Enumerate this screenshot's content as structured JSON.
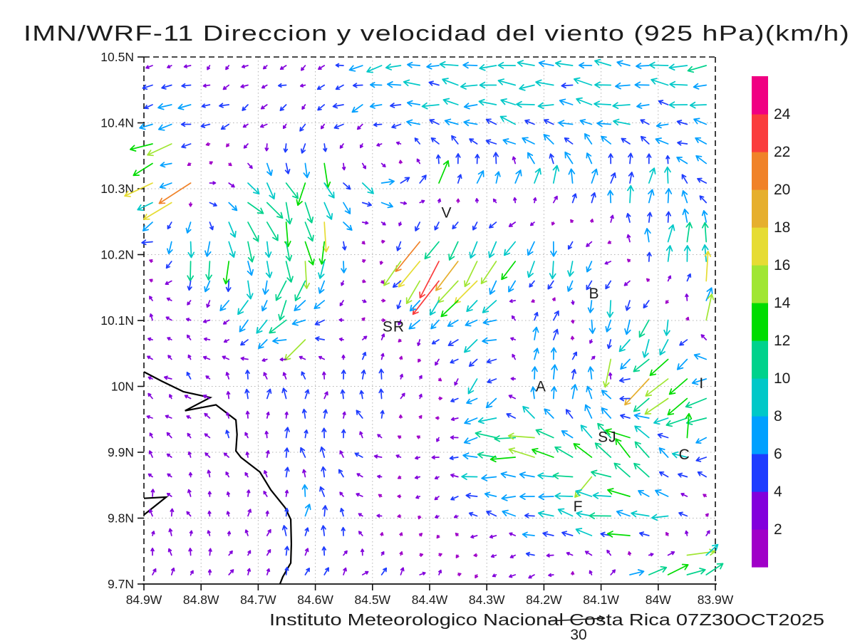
{
  "title": "IMN/WRF-11 Direccion y velocidad del viento (925 hPa)(km/h)",
  "caption": {
    "text": "Instituto Meteorologico Nacional Costa Rica 07Z30OCT2025",
    "reference_vector_label": "30",
    "reference_vector_value": 30
  },
  "axes": {
    "lon_tick_labels": [
      "84.9W",
      "84.8W",
      "84.7W",
      "84.6W",
      "84.5W",
      "84.4W",
      "84.3W",
      "84.2W",
      "84.1W",
      "84W",
      "83.9W"
    ],
    "lon_tick_values": [
      84.9,
      84.8,
      84.7,
      84.6,
      84.5,
      84.4,
      84.3,
      84.2,
      84.1,
      84.0,
      83.9
    ],
    "lat_tick_labels": [
      "10.5N",
      "10.4N",
      "10.3N",
      "10.2N",
      "10.1N",
      "10N",
      "9.9N",
      "9.8N",
      "9.7N"
    ],
    "lat_tick_values": [
      10.5,
      10.4,
      10.3,
      10.2,
      10.1,
      10.0,
      9.9,
      9.8,
      9.7
    ],
    "grid_on": true
  },
  "colorbar": {
    "levels": [
      2,
      4,
      6,
      8,
      10,
      12,
      14,
      16,
      18,
      20,
      22,
      24
    ],
    "colors": [
      "#A000C8",
      "#8200DC",
      "#1E3CFF",
      "#00A0FF",
      "#00C8C8",
      "#00D28C",
      "#00DC00",
      "#A0E632",
      "#E6DC32",
      "#E6AF2D",
      "#F08228",
      "#FA3C3C",
      "#F00082"
    ]
  },
  "map_labels": [
    {
      "text": "V",
      "lon": 84.37,
      "lat": 10.264
    },
    {
      "text": "B",
      "lon": 84.112,
      "lat": 10.141
    },
    {
      "text": "SR",
      "lon": 84.463,
      "lat": 10.091
    },
    {
      "text": "A",
      "lon": 84.205,
      "lat": 10.0
    },
    {
      "text": "I",
      "lon": 83.924,
      "lat": 10.005
    },
    {
      "text": "SJ",
      "lon": 84.089,
      "lat": 9.923
    },
    {
      "text": "C",
      "lon": 83.954,
      "lat": 9.897
    },
    {
      "text": "F",
      "lon": 84.14,
      "lat": 9.818
    }
  ],
  "coastline": [
    [
      84.9,
      10.022
    ],
    [
      84.869,
      10.008
    ],
    [
      84.831,
      9.992
    ],
    [
      84.784,
      9.983
    ],
    [
      84.828,
      9.963
    ],
    [
      84.774,
      9.972
    ],
    [
      84.739,
      9.949
    ],
    [
      84.737,
      9.927
    ],
    [
      84.739,
      9.902
    ],
    [
      84.73,
      9.892
    ],
    [
      84.697,
      9.87
    ],
    [
      84.678,
      9.843
    ],
    [
      84.653,
      9.816
    ],
    [
      84.643,
      9.798
    ],
    [
      84.642,
      9.761
    ],
    [
      84.643,
      9.732
    ],
    [
      84.657,
      9.711
    ],
    [
      84.662,
      9.7
    ]
  ],
  "peninsula": [
    [
      84.9,
      9.83
    ],
    [
      84.861,
      9.832
    ],
    [
      84.9,
      9.805
    ]
  ],
  "chart_data": {
    "type": "quiver",
    "variable": "wind direction and speed",
    "units": "km/h",
    "level": "925 hPa",
    "lon_domain_west": [
      84.9,
      83.9
    ],
    "lat_domain": [
      9.7,
      10.5
    ],
    "reference_arrow_value": 30,
    "speed_levels": [
      2,
      4,
      6,
      8,
      10,
      12,
      14,
      16,
      18,
      20,
      22,
      24
    ],
    "grid_lons_west": [
      84.9,
      84.8,
      84.7,
      84.6,
      84.5,
      84.4,
      84.3,
      84.2,
      84.1,
      84.0,
      83.9
    ],
    "grid_lats": [
      10.5,
      10.4,
      10.3,
      10.2,
      10.1,
      10.0,
      9.9,
      9.8,
      9.7
    ],
    "uv_km_h": [
      [
        [
          -2,
          -1
        ],
        [
          -2,
          -2
        ],
        [
          -2,
          -2
        ],
        [
          -3,
          -1
        ],
        [
          -6,
          -2
        ],
        [
          -8,
          0
        ],
        [
          -8,
          0
        ],
        [
          -8,
          0
        ],
        [
          -8,
          0
        ],
        [
          -8,
          0
        ],
        [
          -8,
          0
        ]
      ],
      [
        [
          -8,
          -1
        ],
        [
          -6,
          -2
        ],
        [
          -3,
          -2
        ],
        [
          -3,
          -2
        ],
        [
          -5,
          -2
        ],
        [
          -7,
          1
        ],
        [
          -7,
          1
        ],
        [
          -7,
          1
        ],
        [
          -7,
          1
        ],
        [
          -7,
          1
        ],
        [
          -7,
          1
        ]
      ],
      [
        [
          -14,
          -8
        ],
        [
          4,
          2
        ],
        [
          6,
          -6
        ],
        [
          3,
          -9
        ],
        [
          7,
          -2
        ],
        [
          3,
          7
        ],
        [
          2,
          6
        ],
        [
          1,
          8
        ],
        [
          2,
          8
        ],
        [
          2,
          8
        ],
        [
          -4,
          3
        ]
      ],
      [
        [
          -2,
          1
        ],
        [
          -2,
          -12
        ],
        [
          4,
          -11
        ],
        [
          0,
          -12
        ],
        [
          1,
          2
        ],
        [
          -10,
          -15
        ],
        [
          -8,
          -13
        ],
        [
          -2,
          -11
        ],
        [
          -3,
          -4
        ],
        [
          1,
          8
        ],
        [
          1,
          9
        ]
      ],
      [
        [
          -2,
          2
        ],
        [
          -2,
          2
        ],
        [
          -7,
          -6
        ],
        [
          -8,
          -4
        ],
        [
          4,
          2
        ],
        [
          -6,
          -6
        ],
        [
          -7,
          -2
        ],
        [
          2,
          7
        ],
        [
          -2,
          -8
        ],
        [
          -3,
          -10
        ],
        [
          2,
          12
        ]
      ],
      [
        [
          -2,
          2
        ],
        [
          -3,
          2
        ],
        [
          0,
          5
        ],
        [
          1,
          5
        ],
        [
          0,
          6
        ],
        [
          3,
          1
        ],
        [
          -7,
          -7
        ],
        [
          2,
          8
        ],
        [
          1,
          7
        ],
        [
          -12,
          -11
        ],
        [
          -10,
          -4
        ]
      ],
      [
        [
          -2,
          2
        ],
        [
          -2,
          2
        ],
        [
          -1,
          3
        ],
        [
          0,
          5
        ],
        [
          -3,
          2
        ],
        [
          -2,
          -2
        ],
        [
          -9,
          1
        ],
        [
          -13,
          2
        ],
        [
          -8,
          6
        ],
        [
          -5,
          8
        ],
        [
          -7,
          -2
        ]
      ],
      [
        [
          -1,
          3
        ],
        [
          -1,
          3
        ],
        [
          0,
          3
        ],
        [
          0,
          6
        ],
        [
          -2,
          1
        ],
        [
          -1,
          -1
        ],
        [
          -4,
          1
        ],
        [
          -7,
          1
        ],
        [
          -11,
          2
        ],
        [
          -9,
          0
        ],
        [
          2,
          2
        ]
      ],
      [
        [
          1,
          3
        ],
        [
          1,
          3
        ],
        [
          2,
          3
        ],
        [
          2,
          4
        ],
        [
          3,
          3
        ],
        [
          3,
          3
        ],
        [
          -1,
          -3
        ],
        [
          -2,
          -2
        ],
        [
          3,
          3
        ],
        [
          13,
          3
        ],
        [
          8,
          6
        ]
      ]
    ],
    "feature_vectors": [
      [
        84.87,
        10.38,
        -12,
        -3
      ],
      [
        84.86,
        10.355,
        -13,
        -6
      ],
      [
        84.9,
        10.315,
        -15,
        -7
      ],
      [
        84.82,
        10.31,
        -17,
        -11
      ],
      [
        84.84,
        10.275,
        -15,
        -9
      ],
      [
        84.63,
        10.3,
        -4,
        -12
      ],
      [
        84.57,
        10.35,
        2,
        -13
      ],
      [
        84.6,
        10.235,
        1,
        -16
      ],
      [
        84.42,
        10.23,
        -13,
        -16
      ],
      [
        84.44,
        10.2,
        -9,
        -13
      ],
      [
        84.4,
        10.3,
        5,
        12
      ],
      [
        84.37,
        10.165,
        -14,
        -18
      ],
      [
        84.33,
        10.17,
        -12,
        -12
      ],
      [
        84.3,
        10.19,
        -8,
        -12
      ],
      [
        84.63,
        10.06,
        -11,
        -11
      ],
      [
        83.92,
        10.155,
        1,
        16
      ],
      [
        83.925,
        10.1,
        3,
        14
      ],
      [
        84.07,
        10.035,
        -3,
        -15
      ],
      [
        84.025,
        10.0,
        -13,
        -14
      ],
      [
        84.06,
        9.915,
        -13,
        4
      ],
      [
        83.965,
        9.935,
        1,
        13
      ],
      [
        84.205,
        9.925,
        -14,
        1
      ],
      [
        84.1,
        9.875,
        -9,
        -11
      ],
      [
        84.05,
        9.78,
        -12,
        1
      ],
      [
        83.95,
        9.745,
        15,
        2
      ],
      [
        83.93,
        9.72,
        9,
        6
      ]
    ]
  }
}
